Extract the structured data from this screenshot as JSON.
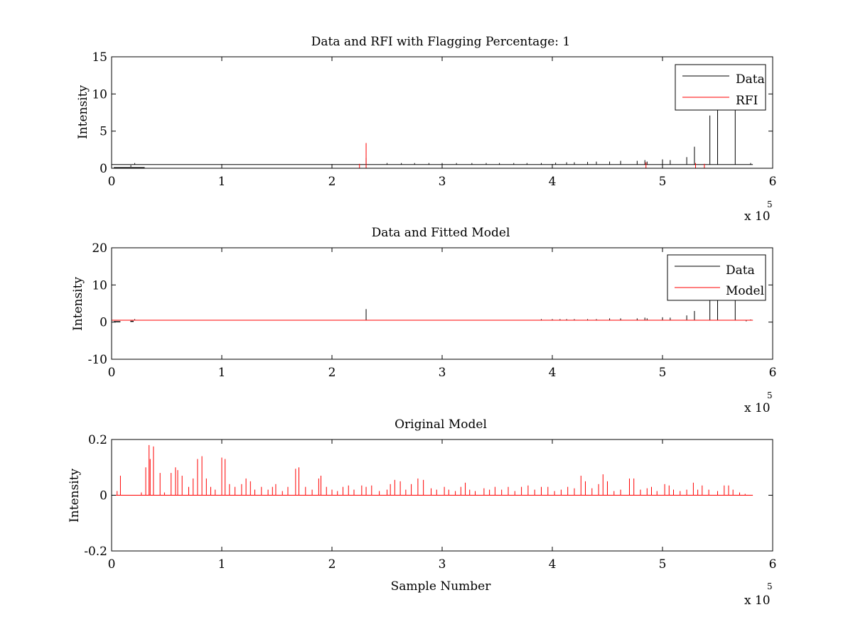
{
  "figure": {
    "background": "#ffffff",
    "axes_color": "#000000",
    "data_color": "#000000",
    "rfi_color": "#ff0000"
  },
  "chart_data": [
    {
      "type": "line",
      "title": "Data and RFI with Flagging Percentage: 1",
      "xlabel": "",
      "ylabel": "Intensity",
      "xlim": [
        0,
        6
      ],
      "ylim": [
        0,
        15
      ],
      "x_ticks": [
        "0",
        "1",
        "2",
        "3",
        "4",
        "5",
        "6"
      ],
      "y_ticks": [
        "0",
        "5",
        "10",
        "15"
      ],
      "x_exponent_label": "x 10",
      "x_exponent": "5",
      "grid": false,
      "legend": {
        "placement": "top-right",
        "entries": [
          "Data",
          "RFI"
        ]
      },
      "series": [
        {
          "name": "Data",
          "color": "#000000",
          "baseline": 0.5,
          "low_segments": [
            [
              0.02,
              0.3,
              0.07
            ],
            [
              0.17,
              0.18,
              0.3
            ]
          ],
          "spikes": [
            [
              0.0,
              0.9
            ],
            [
              0.21,
              0.7
            ],
            [
              2.31,
              1.4
            ],
            [
              2.5,
              0.7
            ],
            [
              2.63,
              0.7
            ],
            [
              2.75,
              0.7
            ],
            [
              2.88,
              0.7
            ],
            [
              3.0,
              0.7
            ],
            [
              3.13,
              0.7
            ],
            [
              3.27,
              0.7
            ],
            [
              3.4,
              0.7
            ],
            [
              3.52,
              0.7
            ],
            [
              3.65,
              0.7
            ],
            [
              3.77,
              0.7
            ],
            [
              3.9,
              0.7
            ],
            [
              4.03,
              0.75
            ],
            [
              4.13,
              0.8
            ],
            [
              4.2,
              0.8
            ],
            [
              4.32,
              0.85
            ],
            [
              4.4,
              0.9
            ],
            [
              4.52,
              0.9
            ],
            [
              4.62,
              1.0
            ],
            [
              4.77,
              1.0
            ],
            [
              4.84,
              1.1
            ],
            [
              4.86,
              0.9
            ],
            [
              5.0,
              1.2
            ],
            [
              5.07,
              1.1
            ],
            [
              5.22,
              1.5
            ],
            [
              5.29,
              2.9
            ],
            [
              5.43,
              7.1
            ],
            [
              5.5,
              8.2
            ],
            [
              5.66,
              8.3
            ],
            [
              5.8,
              0.7
            ]
          ]
        },
        {
          "name": "RFI",
          "color": "#ff0000",
          "spikes": [
            [
              2.25,
              0.6
            ],
            [
              2.31,
              3.4
            ],
            [
              4.85,
              0.8
            ],
            [
              5.3,
              0.7
            ],
            [
              5.38,
              0.6
            ]
          ]
        }
      ]
    },
    {
      "type": "line",
      "title": "Data and Fitted Model",
      "xlabel": "",
      "ylabel": "Intensity",
      "xlim": [
        0,
        6
      ],
      "ylim": [
        -10,
        20
      ],
      "x_ticks": [
        "0",
        "1",
        "2",
        "3",
        "4",
        "5",
        "6"
      ],
      "y_ticks": [
        "-10",
        "0",
        "10",
        "20"
      ],
      "x_exponent_label": "x 10",
      "x_exponent": "5",
      "grid": false,
      "legend": {
        "placement": "top-right",
        "entries": [
          "Data",
          "Model"
        ]
      },
      "series": [
        {
          "name": "Data",
          "color": "#000000",
          "baseline": 0.5,
          "low_segments": [
            [
              0.02,
              0.08,
              0.1
            ],
            [
              0.17,
              0.2,
              0.2
            ]
          ],
          "spikes": [
            [
              0.0,
              1.0
            ],
            [
              0.21,
              0.8
            ],
            [
              2.31,
              3.5
            ],
            [
              3.9,
              0.8
            ],
            [
              4.0,
              0.8
            ],
            [
              4.07,
              0.8
            ],
            [
              4.13,
              0.8
            ],
            [
              4.2,
              0.8
            ],
            [
              4.32,
              0.8
            ],
            [
              4.4,
              0.8
            ],
            [
              4.52,
              1.0
            ],
            [
              4.62,
              1.0
            ],
            [
              4.77,
              1.0
            ],
            [
              4.84,
              1.2
            ],
            [
              4.86,
              1.0
            ],
            [
              5.0,
              1.3
            ],
            [
              5.07,
              1.2
            ],
            [
              5.22,
              1.8
            ],
            [
              5.29,
              3.0
            ],
            [
              5.43,
              7.2
            ],
            [
              5.5,
              8.3
            ],
            [
              5.66,
              8.3
            ],
            [
              5.76,
              0.2
            ],
            [
              5.8,
              0.7
            ]
          ]
        },
        {
          "name": "Model",
          "color": "#ff0000",
          "baseline": 0.5,
          "x_range": [
            0,
            5.82
          ]
        }
      ]
    },
    {
      "type": "line",
      "title": "Original Model",
      "xlabel": "Sample Number",
      "ylabel": "Intensity",
      "xlim": [
        0,
        6
      ],
      "ylim": [
        -0.2,
        0.2
      ],
      "x_ticks": [
        "0",
        "1",
        "2",
        "3",
        "4",
        "5",
        "6"
      ],
      "y_ticks": [
        "-0.2",
        "0",
        "0.2"
      ],
      "x_exponent_label": "x 10",
      "x_exponent": "5",
      "grid": false,
      "series": [
        {
          "color": "#ff0000",
          "baseline": 0,
          "x_range": [
            0,
            5.82
          ],
          "spikes": [
            [
              0.05,
              0.015
            ],
            [
              0.08,
              0.07
            ],
            [
              0.27,
              0.01
            ],
            [
              0.31,
              0.1
            ],
            [
              0.34,
              0.18
            ],
            [
              0.35,
              0.13
            ],
            [
              0.38,
              0.175
            ],
            [
              0.44,
              0.08
            ],
            [
              0.48,
              0.01
            ],
            [
              0.54,
              0.08
            ],
            [
              0.58,
              0.1
            ],
            [
              0.6,
              0.09
            ],
            [
              0.64,
              0.07
            ],
            [
              0.7,
              0.03
            ],
            [
              0.74,
              0.06
            ],
            [
              0.78,
              0.13
            ],
            [
              0.82,
              0.14
            ],
            [
              0.86,
              0.06
            ],
            [
              0.9,
              0.03
            ],
            [
              0.94,
              0.02
            ],
            [
              1.0,
              0.135
            ],
            [
              1.03,
              0.13
            ],
            [
              1.07,
              0.04
            ],
            [
              1.12,
              0.03
            ],
            [
              1.18,
              0.04
            ],
            [
              1.22,
              0.06
            ],
            [
              1.26,
              0.05
            ],
            [
              1.3,
              0.02
            ],
            [
              1.36,
              0.03
            ],
            [
              1.42,
              0.02
            ],
            [
              1.46,
              0.03
            ],
            [
              1.49,
              0.04
            ],
            [
              1.55,
              0.015
            ],
            [
              1.6,
              0.03
            ],
            [
              1.67,
              0.095
            ],
            [
              1.7,
              0.1
            ],
            [
              1.76,
              0.03
            ],
            [
              1.82,
              0.02
            ],
            [
              1.88,
              0.06
            ],
            [
              1.9,
              0.07
            ],
            [
              1.95,
              0.03
            ],
            [
              2.0,
              0.02
            ],
            [
              2.05,
              0.015
            ],
            [
              2.1,
              0.03
            ],
            [
              2.15,
              0.035
            ],
            [
              2.2,
              0.02
            ],
            [
              2.27,
              0.035
            ],
            [
              2.31,
              0.03
            ],
            [
              2.36,
              0.035
            ],
            [
              2.43,
              0.015
            ],
            [
              2.5,
              0.02
            ],
            [
              2.53,
              0.04
            ],
            [
              2.57,
              0.055
            ],
            [
              2.62,
              0.05
            ],
            [
              2.67,
              0.02
            ],
            [
              2.72,
              0.04
            ],
            [
              2.78,
              0.06
            ],
            [
              2.83,
              0.055
            ],
            [
              2.9,
              0.025
            ],
            [
              2.95,
              0.02
            ],
            [
              3.02,
              0.03
            ],
            [
              3.06,
              0.02
            ],
            [
              3.12,
              0.015
            ],
            [
              3.17,
              0.03
            ],
            [
              3.21,
              0.045
            ],
            [
              3.25,
              0.02
            ],
            [
              3.3,
              0.015
            ],
            [
              3.38,
              0.025
            ],
            [
              3.43,
              0.02
            ],
            [
              3.48,
              0.03
            ],
            [
              3.54,
              0.02
            ],
            [
              3.6,
              0.03
            ],
            [
              3.66,
              0.015
            ],
            [
              3.72,
              0.03
            ],
            [
              3.78,
              0.035
            ],
            [
              3.84,
              0.02
            ],
            [
              3.9,
              0.03
            ],
            [
              3.96,
              0.03
            ],
            [
              4.02,
              0.015
            ],
            [
              4.08,
              0.02
            ],
            [
              4.14,
              0.03
            ],
            [
              4.2,
              0.025
            ],
            [
              4.26,
              0.07
            ],
            [
              4.3,
              0.05
            ],
            [
              4.36,
              0.025
            ],
            [
              4.42,
              0.04
            ],
            [
              4.46,
              0.075
            ],
            [
              4.5,
              0.05
            ],
            [
              4.56,
              0.015
            ],
            [
              4.62,
              0.02
            ],
            [
              4.7,
              0.06
            ],
            [
              4.74,
              0.06
            ],
            [
              4.8,
              0.02
            ],
            [
              4.86,
              0.025
            ],
            [
              4.9,
              0.03
            ],
            [
              4.95,
              0.015
            ],
            [
              5.02,
              0.04
            ],
            [
              5.06,
              0.035
            ],
            [
              5.1,
              0.02
            ],
            [
              5.16,
              0.015
            ],
            [
              5.22,
              0.02
            ],
            [
              5.28,
              0.045
            ],
            [
              5.32,
              0.02
            ],
            [
              5.36,
              0.035
            ],
            [
              5.42,
              0.02
            ],
            [
              5.5,
              0.015
            ],
            [
              5.56,
              0.035
            ],
            [
              5.6,
              0.035
            ],
            [
              5.64,
              0.02
            ],
            [
              5.7,
              0.01
            ],
            [
              5.75,
              0.005
            ]
          ]
        }
      ]
    }
  ]
}
